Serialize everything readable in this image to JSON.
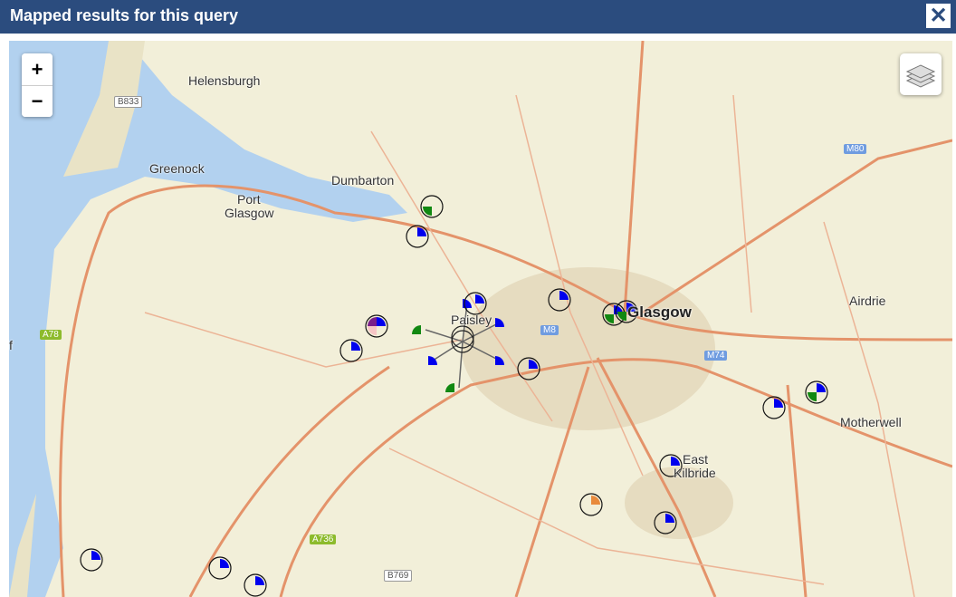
{
  "header": {
    "title": "Mapped results for this query",
    "close_icon": "close-icon"
  },
  "map": {
    "zoom_in": "+",
    "zoom_out": "−",
    "layers_icon": "layers-icon",
    "places": [
      "Helensburgh",
      "Greenock",
      "Dumbarton",
      "Port",
      "Glasgow",
      "Paisley",
      "Glasgow",
      "Airdrie",
      "Motherwell",
      "East",
      "Kilbride",
      "f"
    ],
    "road_shields": [
      "B833",
      "M80",
      "A78",
      "M8",
      "M74",
      "A736",
      "B769"
    ],
    "marker_colors": {
      "blue": "#0000ee",
      "green": "#118811",
      "purple": "#7a1f8a",
      "pink": "#f7c6c6",
      "orange": "#e88a3c"
    },
    "markers": [
      {
        "slices": [
          "",
          "",
          "green",
          ""
        ]
      },
      {
        "slices": [
          "blue",
          "",
          "",
          ""
        ]
      },
      {
        "slices": [
          "blue",
          "",
          "",
          ""
        ]
      },
      {
        "slices": [
          "blue",
          "",
          "",
          ""
        ]
      },
      {
        "slices": [
          "blue",
          "",
          "pink",
          "purple"
        ]
      },
      {
        "slices": [
          "blue",
          "",
          "",
          ""
        ]
      },
      {
        "slices": [
          "blue",
          "",
          "",
          ""
        ]
      },
      {
        "slices": [
          "blue",
          "",
          "green",
          ""
        ]
      },
      {
        "slices": [
          "blue",
          "",
          "green",
          ""
        ]
      },
      {
        "slices": [
          "blue",
          "",
          "",
          ""
        ]
      },
      {
        "slices": [
          "blue",
          "",
          "green",
          ""
        ]
      },
      {
        "slices": [
          "blue",
          "",
          "",
          ""
        ]
      },
      {
        "slices": [
          "orange",
          "",
          "",
          ""
        ]
      },
      {
        "slices": [
          "blue",
          "",
          "",
          ""
        ]
      },
      {
        "slices": [
          "blue",
          "",
          "",
          ""
        ]
      },
      {
        "slices": [
          "blue",
          "",
          "",
          ""
        ]
      },
      {
        "slices": [
          "blue",
          "",
          "",
          ""
        ]
      }
    ],
    "cluster": {
      "legs": [
        "blue",
        "blue",
        "green",
        "blue",
        "blue",
        "green"
      ]
    }
  }
}
